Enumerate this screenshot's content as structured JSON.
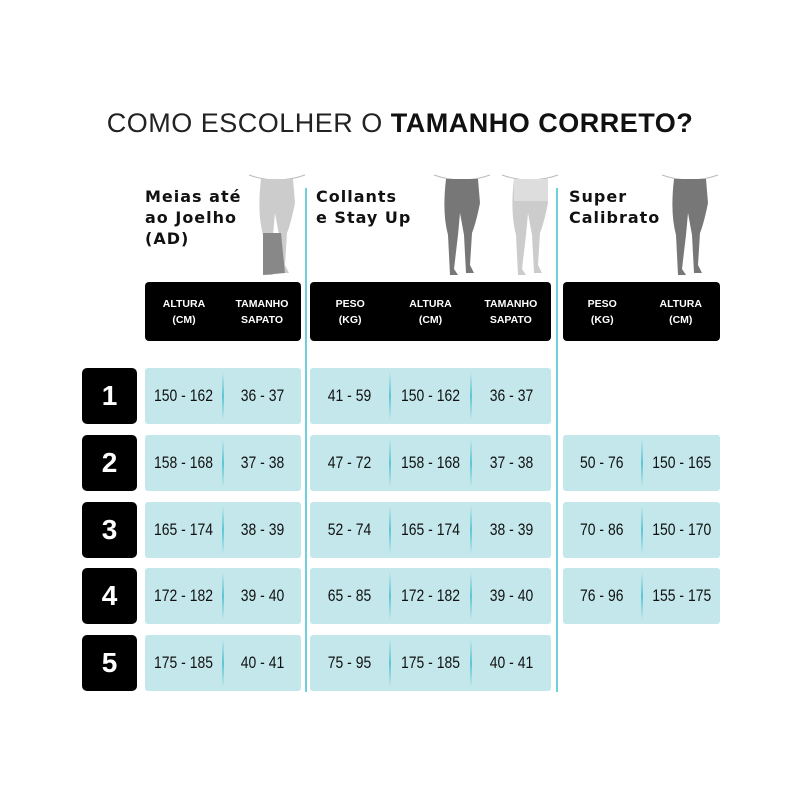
{
  "title": {
    "regular": "COMO ESCOLHER O ",
    "bold": "TAMANHO CORRETO?"
  },
  "colors": {
    "cell": "#c3e7eb",
    "divider": "#5cc6d4",
    "header": "#000000"
  },
  "row_numbers": [
    "1",
    "2",
    "3",
    "4",
    "5"
  ],
  "groups": [
    {
      "name_lines": [
        "Meias até",
        "ao Joelho",
        "(AD)"
      ],
      "headers": [
        [
          "ALTURA",
          "(CM)"
        ],
        [
          "TAMANHO",
          "SAPATO"
        ]
      ],
      "rows": [
        [
          "150 - 162",
          "36 - 37"
        ],
        [
          "158 - 168",
          "37 - 38"
        ],
        [
          "165 - 174",
          "38 - 39"
        ],
        [
          "172 - 182",
          "39 - 40"
        ],
        [
          "175 - 185",
          "40 - 41"
        ]
      ]
    },
    {
      "name_lines": [
        "Collants",
        "e Stay Up"
      ],
      "headers": [
        [
          "PESO",
          "(KG)"
        ],
        [
          "ALTURA",
          "(CM)"
        ],
        [
          "TAMANHO",
          "SAPATO"
        ]
      ],
      "rows": [
        [
          "41 - 59",
          "150 - 162",
          "36 - 37"
        ],
        [
          "47 - 72",
          "158 - 168",
          "37 - 38"
        ],
        [
          "52 - 74",
          "165 - 174",
          "38 - 39"
        ],
        [
          "65 - 85",
          "172 - 182",
          "39 - 40"
        ],
        [
          "75 - 95",
          "175 - 185",
          "40 - 41"
        ]
      ]
    },
    {
      "name_lines": [
        "Super",
        "Calibrato"
      ],
      "headers": [
        [
          "PESO",
          "(KG)"
        ],
        [
          "ALTURA",
          "(CM)"
        ]
      ],
      "rows": [
        null,
        [
          "50 - 76",
          "150 - 165"
        ],
        [
          "70 - 86",
          "150 - 170"
        ],
        [
          "76 - 96",
          "155 - 175"
        ],
        null
      ]
    }
  ]
}
